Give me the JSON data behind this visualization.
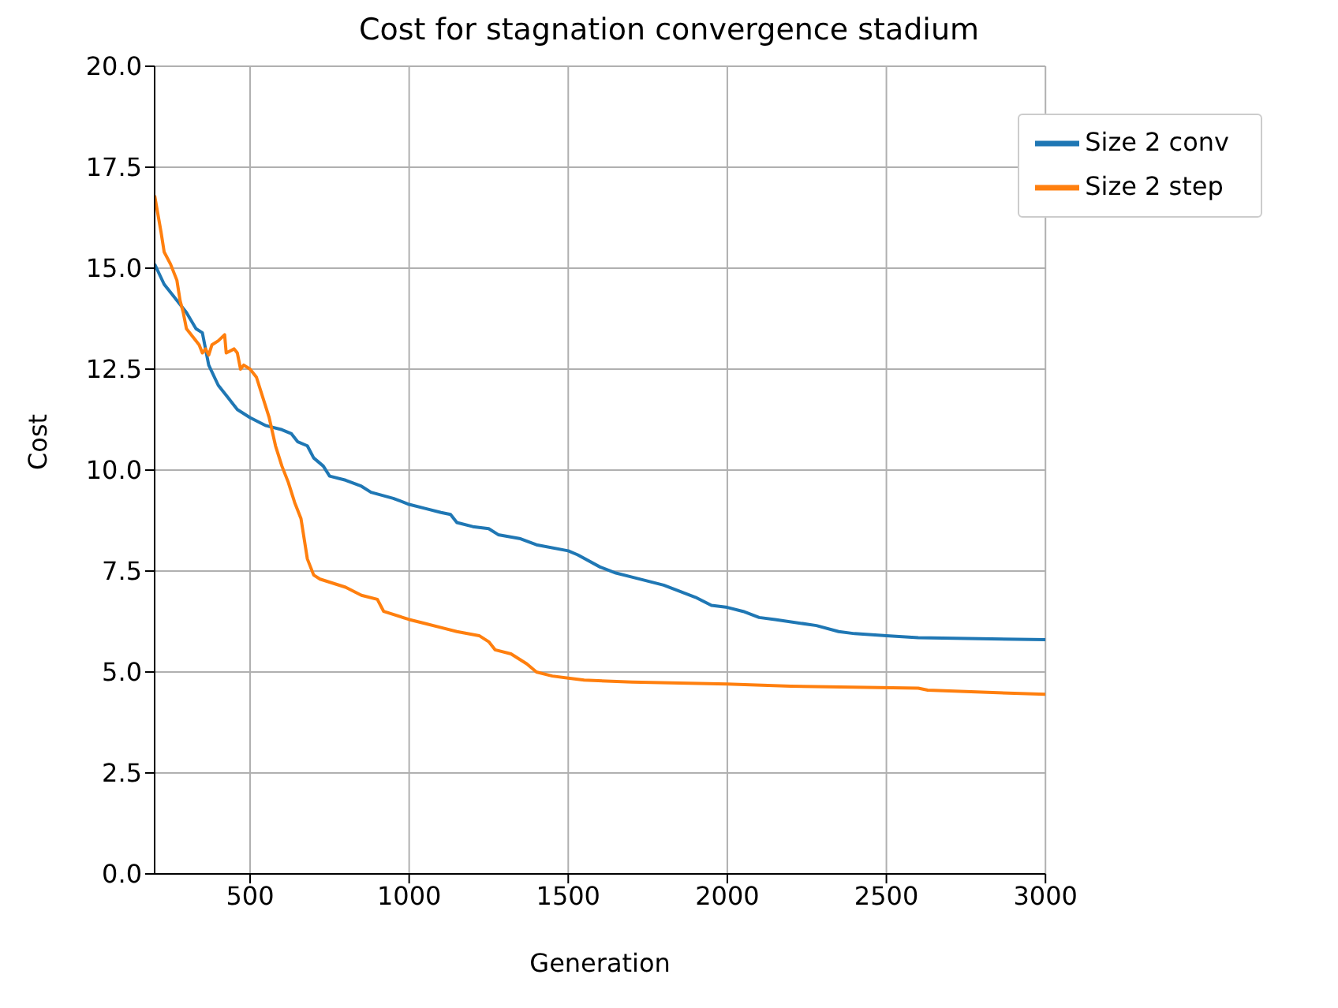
{
  "chart_data": {
    "type": "line",
    "title": "Cost for stagnation convergence stadium",
    "xlabel": "Generation",
    "ylabel": "Cost",
    "xlim": [
      200,
      3000
    ],
    "xticks": [
      500,
      1000,
      1500,
      2000,
      2500,
      3000
    ],
    "ylim": [
      0,
      20
    ],
    "yticks": [
      {
        "value": 0,
        "label": "0.0"
      },
      {
        "value": 2.5,
        "label": "2.5"
      },
      {
        "value": 5,
        "label": "5.0"
      },
      {
        "value": 7.5,
        "label": "7.5"
      },
      {
        "value": 10,
        "label": "10.0"
      },
      {
        "value": 12.5,
        "label": "12.5"
      },
      {
        "value": 15,
        "label": "15.0"
      },
      {
        "value": 17.5,
        "label": "17.5"
      },
      {
        "value": 20,
        "label": "20.0"
      }
    ],
    "grid": true,
    "legend": "top right",
    "marker": "none",
    "line_style": "solid",
    "series": [
      {
        "name": "Size 2 conv",
        "color": "#1f77b4",
        "x": [
          200,
          230,
          260,
          280,
          300,
          330,
          350,
          370,
          400,
          430,
          460,
          500,
          550,
          600,
          630,
          650,
          680,
          700,
          730,
          750,
          800,
          850,
          880,
          950,
          1000,
          1050,
          1100,
          1130,
          1150,
          1200,
          1250,
          1280,
          1350,
          1400,
          1500,
          1530,
          1600,
          1650,
          1700,
          1800,
          1850,
          1900,
          1950,
          2000,
          2050,
          2100,
          2150,
          2280,
          2350,
          2400,
          2500,
          2600,
          3000
        ],
        "values": [
          15.1,
          14.6,
          14.3,
          14.1,
          13.9,
          13.5,
          13.4,
          12.6,
          12.1,
          11.8,
          11.5,
          11.3,
          11.1,
          11.0,
          10.9,
          10.7,
          10.6,
          10.3,
          10.1,
          9.85,
          9.75,
          9.6,
          9.45,
          9.3,
          9.15,
          9.05,
          8.95,
          8.9,
          8.7,
          8.6,
          8.55,
          8.4,
          8.3,
          8.15,
          8.0,
          7.9,
          7.6,
          7.45,
          7.35,
          7.15,
          7.0,
          6.85,
          6.65,
          6.6,
          6.5,
          6.35,
          6.3,
          6.15,
          6.0,
          5.95,
          5.9,
          5.85,
          5.8
        ]
      },
      {
        "name": "Size 2 step",
        "color": "#ff7f0e",
        "x": [
          200,
          220,
          230,
          250,
          270,
          280,
          290,
          300,
          320,
          340,
          350,
          360,
          370,
          380,
          400,
          420,
          425,
          450,
          460,
          470,
          480,
          500,
          520,
          540,
          560,
          580,
          600,
          620,
          640,
          660,
          680,
          700,
          720,
          800,
          850,
          900,
          920,
          1000,
          1050,
          1100,
          1150,
          1220,
          1250,
          1270,
          1320,
          1370,
          1400,
          1450,
          1500,
          1550,
          1700,
          2000,
          2200,
          2600,
          2630,
          2800,
          3000
        ],
        "values": [
          16.8,
          15.9,
          15.4,
          15.1,
          14.7,
          14.2,
          13.9,
          13.5,
          13.3,
          13.1,
          12.9,
          13.0,
          12.85,
          13.1,
          13.2,
          13.35,
          12.9,
          13.0,
          12.9,
          12.5,
          12.6,
          12.5,
          12.3,
          11.8,
          11.3,
          10.6,
          10.1,
          9.7,
          9.2,
          8.8,
          7.8,
          7.4,
          7.3,
          7.1,
          6.9,
          6.8,
          6.5,
          6.3,
          6.2,
          6.1,
          6.0,
          5.9,
          5.75,
          5.55,
          5.45,
          5.2,
          5.0,
          4.9,
          4.85,
          4.8,
          4.75,
          4.7,
          4.65,
          4.6,
          4.55,
          4.5,
          4.45
        ]
      }
    ]
  }
}
